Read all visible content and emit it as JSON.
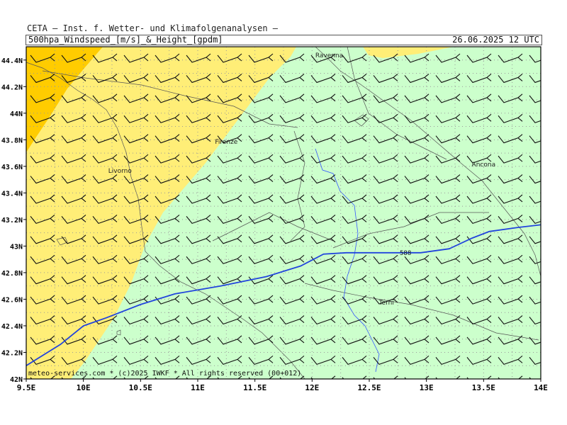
{
  "header": {
    "institute": "CETA — Inst. f. Wetter- und Klimafolgenanalysen —",
    "product": "500hpa_Windspeed_[m/s]_&_Height_[gpdm]",
    "valid": "26.06.2025 12 UTC"
  },
  "map": {
    "lon_range": [
      9.5,
      14.0
    ],
    "lat_range": [
      42.0,
      44.5
    ],
    "lon_ticks": [
      "9.5E",
      "10E",
      "10.5E",
      "11E",
      "11.5E",
      "12E",
      "12.5E",
      "13E",
      "13.5E",
      "14E"
    ],
    "lat_ticks": [
      "42N",
      "42.2N",
      "42.4N",
      "42.6N",
      "42.8N",
      "43N",
      "43.2N",
      "43.4N",
      "43.6N",
      "43.8N",
      "44N",
      "44.2N",
      "44.4N"
    ],
    "cities": [
      {
        "name": "Ravenna",
        "lon": 12.15,
        "lat": 44.42
      },
      {
        "name": "Firenze",
        "lon": 11.25,
        "lat": 43.77
      },
      {
        "name": "Livorno",
        "lon": 10.32,
        "lat": 43.55
      },
      {
        "name": "Ancona",
        "lon": 13.5,
        "lat": 43.6
      },
      {
        "name": "Terni",
        "lon": 12.65,
        "lat": 42.56
      }
    ],
    "contour": {
      "label": "588",
      "points": [
        [
          9.5,
          42.1
        ],
        [
          9.8,
          42.26
        ],
        [
          10.0,
          42.4
        ],
        [
          10.2,
          42.46
        ],
        [
          10.5,
          42.56
        ],
        [
          10.8,
          42.64
        ],
        [
          11.2,
          42.7
        ],
        [
          11.6,
          42.77
        ],
        [
          11.9,
          42.85
        ],
        [
          12.1,
          42.94
        ],
        [
          12.3,
          42.95
        ],
        [
          12.6,
          42.95
        ],
        [
          12.95,
          42.95
        ],
        [
          13.2,
          42.98
        ],
        [
          13.4,
          43.06
        ],
        [
          13.55,
          43.11
        ],
        [
          13.8,
          43.14
        ],
        [
          14.0,
          43.16
        ]
      ]
    },
    "wind_colors": {
      "light_green": "#ccffcc",
      "yellow": "#ffee77",
      "orange": "#ffcc00"
    },
    "grid_step_deg": 0.25,
    "barb_cols": 17,
    "barb_rows": 17
  },
  "footer": "meteo-services.com * (c)2025 IWKF * All rights reserved (00+012)"
}
